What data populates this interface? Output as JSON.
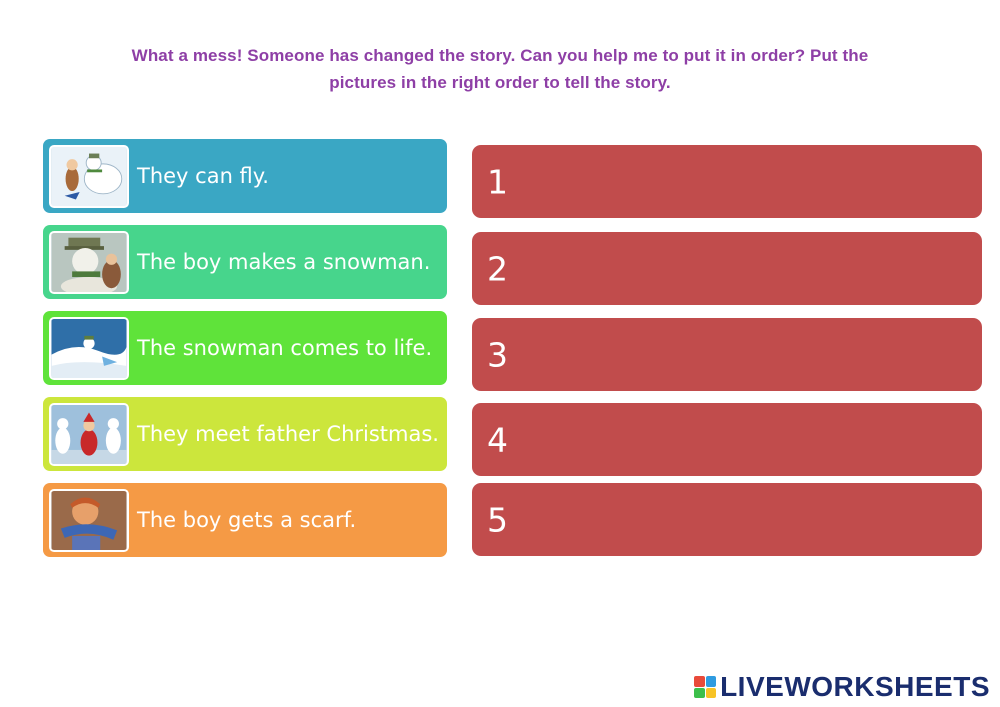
{
  "instructions": {
    "line1": "What a mess! Someone has changed the story. Can you help me to put it in order? Put the",
    "line2": "pictures in the right order to tell the story."
  },
  "cards": [
    {
      "text": "They can fly.",
      "color": "#3aa7c4",
      "image": "flying-snowman-and-boy-picture"
    },
    {
      "text": "The boy makes a snowman.",
      "color": "#47d58c",
      "image": "snowman-portrait-picture"
    },
    {
      "text": "The snowman comes to life.",
      "color": "#5fe33a",
      "image": "snowy-landscape-picture"
    },
    {
      "text": "They meet father Christmas.",
      "color": "#cce63c",
      "image": "father-christmas-party-picture"
    },
    {
      "text": "The boy gets a scarf.",
      "color": "#f59a45",
      "image": "boy-with-scarf-picture"
    }
  ],
  "slots": [
    {
      "number": "1",
      "color": "#c14c4c"
    },
    {
      "number": "2",
      "color": "#c14c4c"
    },
    {
      "number": "3",
      "color": "#c14c4c"
    },
    {
      "number": "4",
      "color": "#c14c4c"
    },
    {
      "number": "5",
      "color": "#c14c4c"
    }
  ],
  "brand": {
    "name": "LIVEWORKSHEETS",
    "logo_colors": [
      "#e94a3a",
      "#2e9be0",
      "#3cbf4b",
      "#f7c325"
    ]
  }
}
